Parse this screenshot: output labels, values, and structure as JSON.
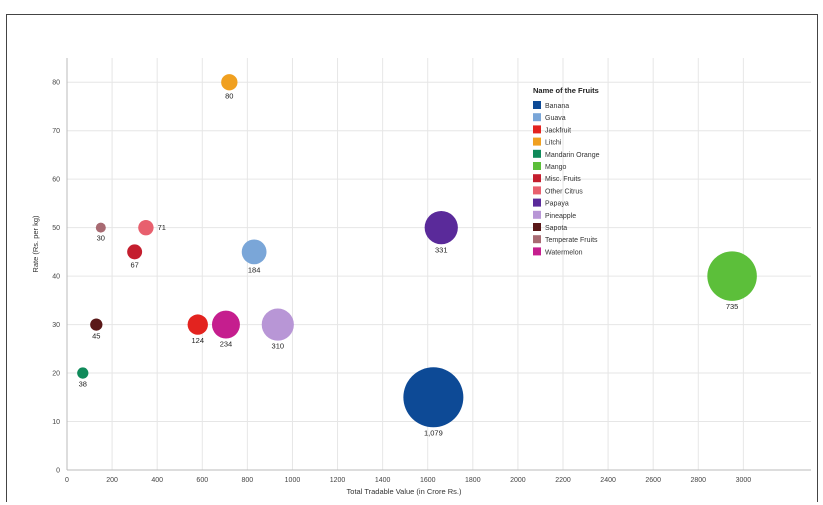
{
  "chart_data": {
    "type": "scatter",
    "xlabel": "Total Tradable Value (in Crore Rs.)",
    "ylabel": "Rate (Rs. per kg)",
    "xlim": [
      0,
      3300
    ],
    "ylim": [
      0,
      85
    ],
    "x_ticks": [
      0,
      200,
      400,
      600,
      800,
      1000,
      1200,
      1400,
      1600,
      1800,
      2000,
      2200,
      2400,
      2600,
      2800,
      3000
    ],
    "y_ticks": [
      0,
      10,
      20,
      30,
      40,
      50,
      60,
      70,
      80
    ],
    "grid": true,
    "legend_title": "Name of the Fruits",
    "legend_position": "top-right",
    "series": [
      {
        "name": "Banana",
        "color": "#0d4a96",
        "x": 1625,
        "y": 15,
        "label": "1,079",
        "size": 1079
      },
      {
        "name": "Guava",
        "color": "#7aa6d8",
        "x": 830,
        "y": 45,
        "label": "184",
        "size": 184
      },
      {
        "name": "Jackfruit",
        "color": "#e3231f",
        "x": 580,
        "y": 30,
        "label": "124",
        "size": 124
      },
      {
        "name": "Litchi",
        "color": "#f0a020",
        "x": 720,
        "y": 80,
        "label": "80",
        "size": 80
      },
      {
        "name": "Mandarin Orange",
        "color": "#0f8a5a",
        "x": 70,
        "y": 20,
        "label": "38",
        "size": 38
      },
      {
        "name": "Mango",
        "color": "#5cbf3a",
        "x": 2950,
        "y": 40,
        "label": "735",
        "size": 735
      },
      {
        "name": "Misc. Fruits",
        "color": "#c41e2e",
        "x": 300,
        "y": 45,
        "label": "67",
        "size": 67
      },
      {
        "name": "Other Citrus",
        "color": "#e8606e",
        "x": 350,
        "y": 50,
        "label": "71",
        "size": 71
      },
      {
        "name": "Papaya",
        "color": "#5a2a9a",
        "x": 1660,
        "y": 50,
        "label": "331",
        "size": 331
      },
      {
        "name": "Pineapple",
        "color": "#b896d6",
        "x": 935,
        "y": 30,
        "label": "310",
        "size": 310
      },
      {
        "name": "Sapota",
        "color": "#5a1818",
        "x": 130,
        "y": 30,
        "label": "45",
        "size": 45
      },
      {
        "name": "Temperate Fruits",
        "color": "#a86a72",
        "x": 150,
        "y": 50,
        "label": "30",
        "size": 30
      },
      {
        "name": "Watermelon",
        "color": "#c51e8e",
        "x": 705,
        "y": 30,
        "label": "234",
        "size": 234
      }
    ]
  }
}
